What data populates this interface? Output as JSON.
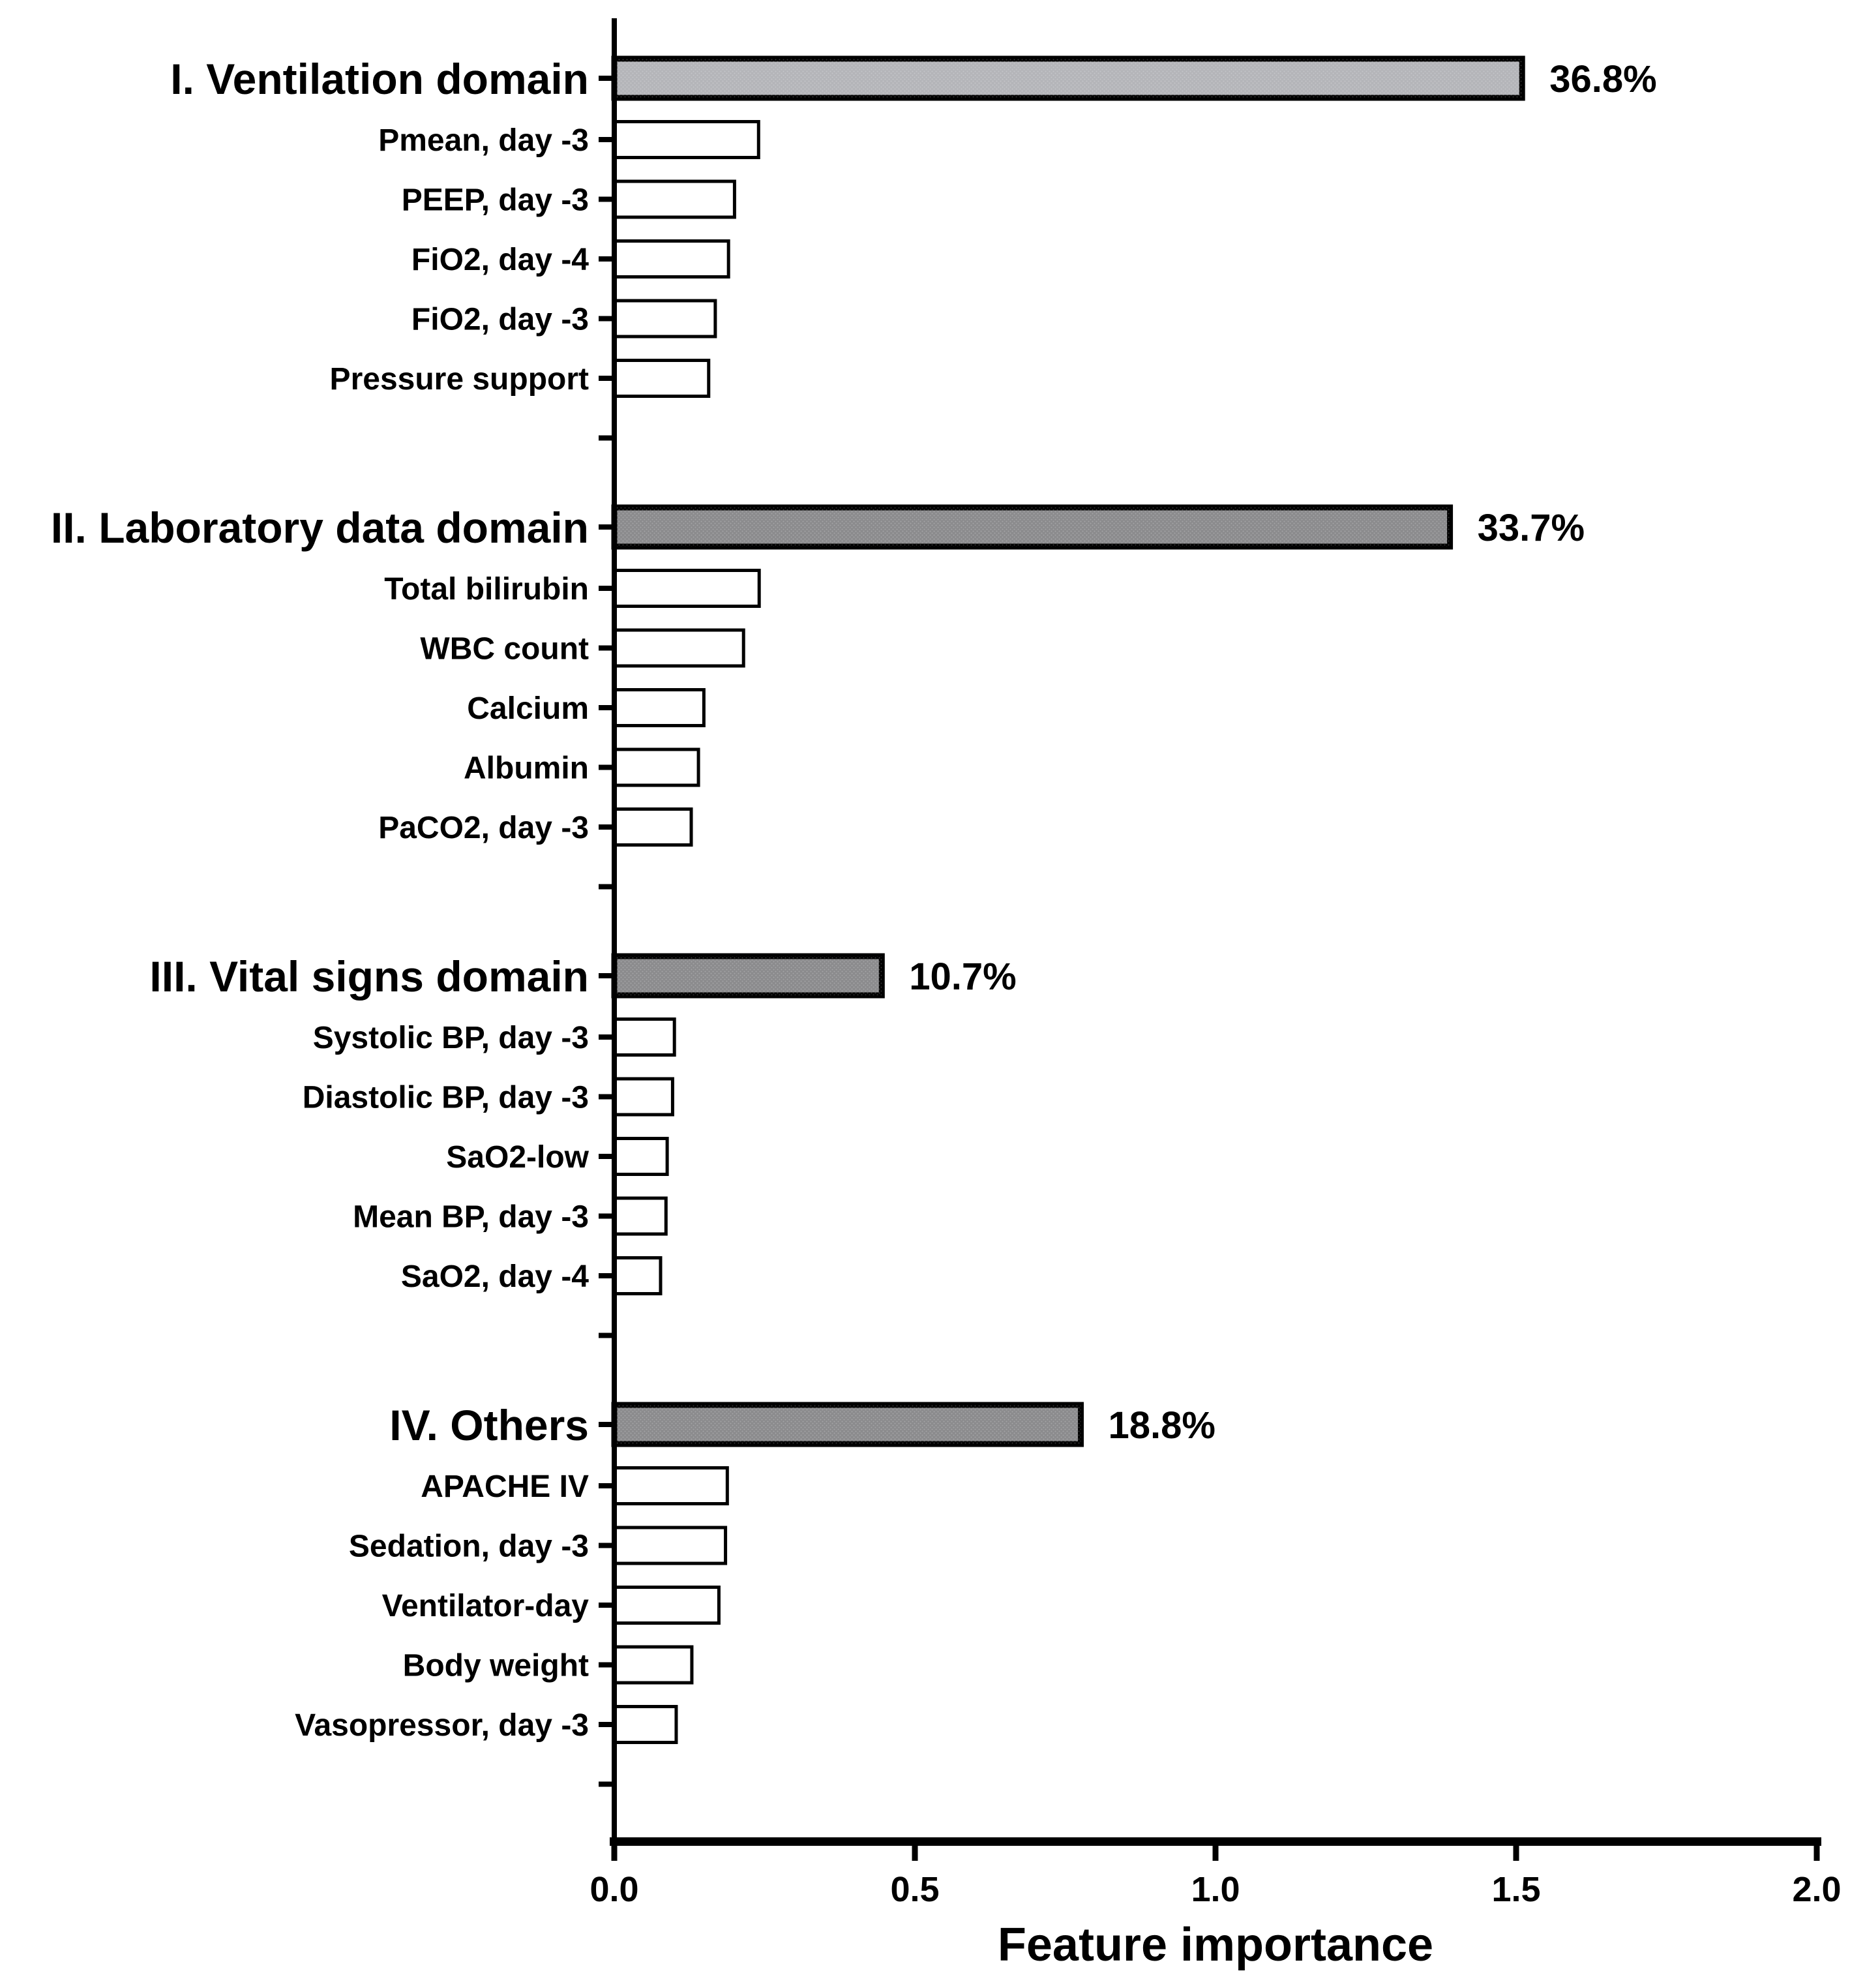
{
  "chart_data": {
    "type": "bar",
    "orientation": "horizontal",
    "xlabel": "Feature importance",
    "xlim": [
      0,
      2.0
    ],
    "grid": false,
    "feature_bar_fill": "#ffffff",
    "bar_border_color": "#000000",
    "x_ticks": [
      {
        "value": 0.0,
        "label": "0.0"
      },
      {
        "value": 0.5,
        "label": "0.5"
      },
      {
        "value": 1.0,
        "label": "1.0"
      },
      {
        "value": 1.5,
        "label": "1.5"
      },
      {
        "value": 2.0,
        "label": "2.0"
      }
    ],
    "groups": [
      {
        "domain": {
          "id": "ventilation",
          "label": "I. Ventilation domain",
          "value": 1.51,
          "pct": 36.8,
          "pct_label": "36.8%",
          "fill": "#b4b5b9"
        },
        "features": [
          {
            "label": "Pmean, day -3",
            "value": 0.24
          },
          {
            "label": "PEEP, day -3",
            "value": 0.2
          },
          {
            "label": "FiO2, day -4",
            "value": 0.19
          },
          {
            "label": "FiO2, day -3",
            "value": 0.168
          },
          {
            "label": "Pressure support",
            "value": 0.157
          }
        ]
      },
      {
        "domain": {
          "id": "laboratory",
          "label": "II. Laboratory data domain",
          "value": 1.39,
          "pct": 33.7,
          "pct_label": "33.7%",
          "fill": "#8b8b8d"
        },
        "features": [
          {
            "label": "Total bilirubin",
            "value": 0.241
          },
          {
            "label": "WBC count",
            "value": 0.215
          },
          {
            "label": "Calcium",
            "value": 0.149
          },
          {
            "label": "Albumin",
            "value": 0.14
          },
          {
            "label": "PaCO2, day -3",
            "value": 0.128
          }
        ]
      },
      {
        "domain": {
          "id": "vital-signs",
          "label": "III. Vital signs domain",
          "value": 0.445,
          "pct": 10.7,
          "pct_label": "10.7%",
          "fill": "#8b8b8d"
        },
        "features": [
          {
            "label": "Systolic BP, day -3",
            "value": 0.1
          },
          {
            "label": "Diastolic BP, day -3",
            "value": 0.097
          },
          {
            "label": "SaO2-low",
            "value": 0.088
          },
          {
            "label": "Mean BP, day -3",
            "value": 0.086
          },
          {
            "label": "SaO2, day -4",
            "value": 0.077
          }
        ]
      },
      {
        "domain": {
          "id": "others",
          "label": "IV. Others",
          "value": 0.776,
          "pct": 18.8,
          "pct_label": "18.8%",
          "fill": "#8b8b8d"
        },
        "features": [
          {
            "label": "APACHE IV",
            "value": 0.188
          },
          {
            "label": "Sedation, day -3",
            "value": 0.185
          },
          {
            "label": "Ventilator-day",
            "value": 0.174
          },
          {
            "label": "Body weight",
            "value": 0.129
          },
          {
            "label": "Vasopressor, day -3",
            "value": 0.103
          }
        ]
      }
    ]
  }
}
